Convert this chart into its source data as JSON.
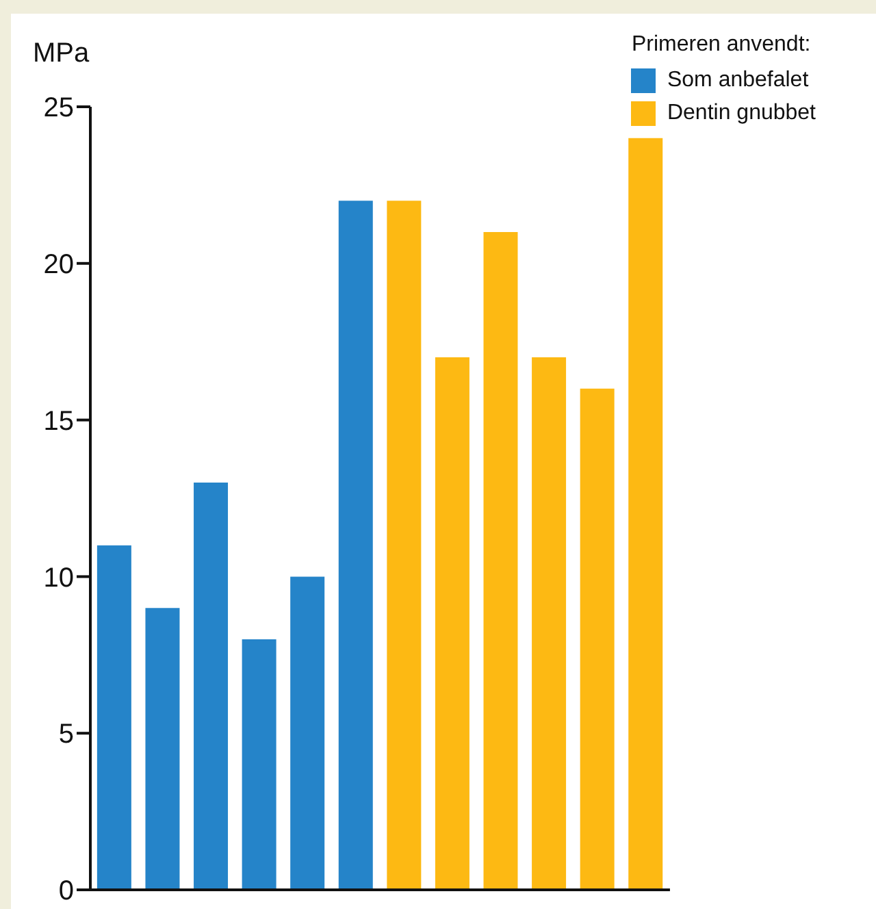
{
  "chart_data": {
    "type": "bar",
    "ylabel": "MPa",
    "legend_title": "Primeren anvendt:",
    "categories": [
      null,
      null,
      null,
      null,
      null,
      null,
      null,
      null,
      null,
      null,
      null,
      null
    ],
    "series": [
      {
        "name": "Som anbefalet",
        "color": "#2584c9",
        "values": [
          11,
          9,
          13,
          8,
          10,
          22,
          null,
          null,
          null,
          null,
          null,
          null
        ]
      },
      {
        "name": "Dentin gnubbet",
        "color": "#fdb913",
        "values": [
          null,
          null,
          null,
          null,
          null,
          null,
          22,
          17,
          21,
          17,
          16,
          24
        ]
      }
    ],
    "ylim": [
      0,
      25
    ],
    "yticks": [
      0,
      5,
      10,
      15,
      20,
      25
    ],
    "grid": false,
    "legend": "top right",
    "tick_labels": "y"
  }
}
